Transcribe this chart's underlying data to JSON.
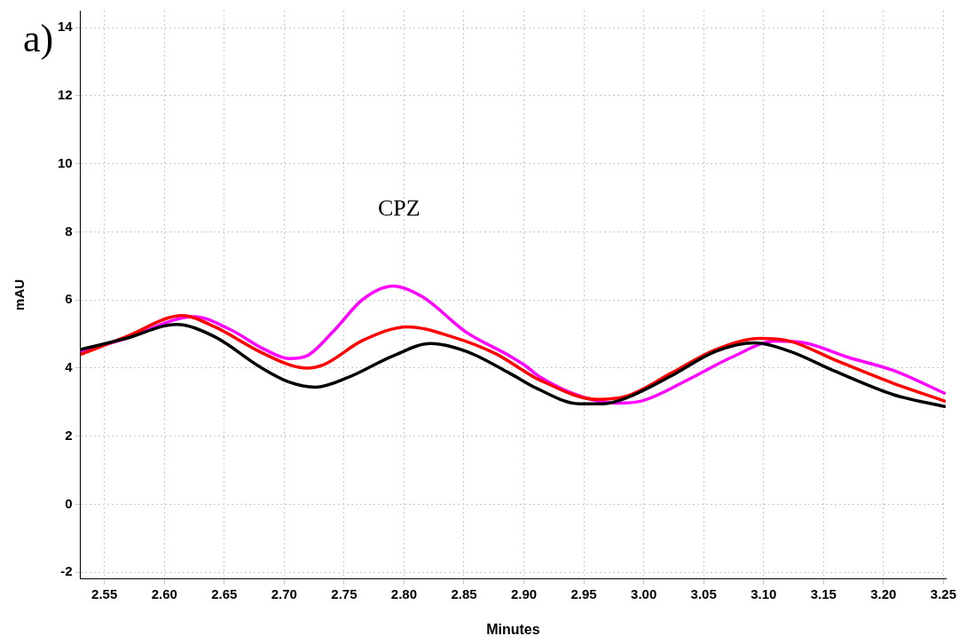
{
  "chart_data": {
    "type": "line",
    "xlabel": "Minutes",
    "ylabel": "mAU",
    "annotations": [
      "a)",
      "CPZ"
    ],
    "xlim": [
      2.53,
      3.252
    ],
    "xticks": [
      {
        "value": 2.55,
        "label": "2.55"
      },
      {
        "value": 2.6,
        "label": "2.60"
      },
      {
        "value": 2.65,
        "label": "2.65"
      },
      {
        "value": 2.7,
        "label": "2.70"
      },
      {
        "value": 2.75,
        "label": "2.75"
      },
      {
        "value": 2.8,
        "label": "2.80"
      },
      {
        "value": 2.85,
        "label": "2.85"
      },
      {
        "value": 2.9,
        "label": "2.90"
      },
      {
        "value": 2.95,
        "label": "2.95"
      },
      {
        "value": 3,
        "label": "3.00"
      },
      {
        "value": 3.05,
        "label": "3.05"
      },
      {
        "value": 3.1,
        "label": "3.10"
      },
      {
        "value": 3.15,
        "label": "3.15"
      },
      {
        "value": 3.2,
        "label": "3.20"
      },
      {
        "value": 3.25,
        "label": "3.25"
      }
    ],
    "ylim": [
      -2.2,
      14.5
    ],
    "yticks": [
      -2,
      0,
      2,
      4,
      6,
      8,
      10,
      12,
      14
    ],
    "grid": true,
    "legend": false,
    "marker": "none",
    "line_style": "solid",
    "series": [
      {
        "color": "#000000",
        "x": [
          2.531,
          2.568,
          2.61,
          2.642,
          2.679,
          2.704,
          2.726,
          2.753,
          2.791,
          2.822,
          2.852,
          2.887,
          2.912,
          2.946,
          2.966,
          2.986,
          3.023,
          3.06,
          3.093,
          3.122,
          3.16,
          3.209,
          3.251
        ],
        "values": [
          4.55,
          4.87,
          5.28,
          4.92,
          4.05,
          3.59,
          3.44,
          3.72,
          4.36,
          4.72,
          4.49,
          3.87,
          3.38,
          2.95,
          2.95,
          3.13,
          3.77,
          4.49,
          4.74,
          4.49,
          3.9,
          3.21,
          2.87
        ]
      },
      {
        "color": "#ff0000",
        "x": [
          2.531,
          2.568,
          2.615,
          2.642,
          2.679,
          2.704,
          2.719,
          2.733,
          2.766,
          2.803,
          2.84,
          2.877,
          2.902,
          2.912,
          2.961,
          2.986,
          3.023,
          3.06,
          3.097,
          3.122,
          3.16,
          3.209,
          3.251
        ],
        "values": [
          4.41,
          4.92,
          5.54,
          5.21,
          4.49,
          4.1,
          4.0,
          4.1,
          4.82,
          5.21,
          4.92,
          4.41,
          3.87,
          3.67,
          3.08,
          3.18,
          3.85,
          4.54,
          4.87,
          4.79,
          4.23,
          3.54,
          3.03
        ]
      },
      {
        "color": "#ff00ff",
        "x": [
          2.531,
          2.568,
          2.625,
          2.655,
          2.684,
          2.704,
          2.719,
          2.741,
          2.766,
          2.791,
          2.815,
          2.852,
          2.887,
          2.902,
          2.912,
          2.949,
          2.978,
          2.998,
          3.036,
          3.073,
          3.11,
          3.134,
          3.171,
          3.209,
          3.251
        ],
        "values": [
          4.49,
          4.87,
          5.51,
          5.13,
          4.54,
          4.28,
          4.36,
          5.08,
          6.03,
          6.41,
          6.1,
          5.05,
          4.38,
          4.05,
          3.77,
          3.15,
          2.97,
          3.03,
          3.64,
          4.31,
          4.79,
          4.74,
          4.31,
          3.92,
          3.26
        ]
      }
    ]
  }
}
